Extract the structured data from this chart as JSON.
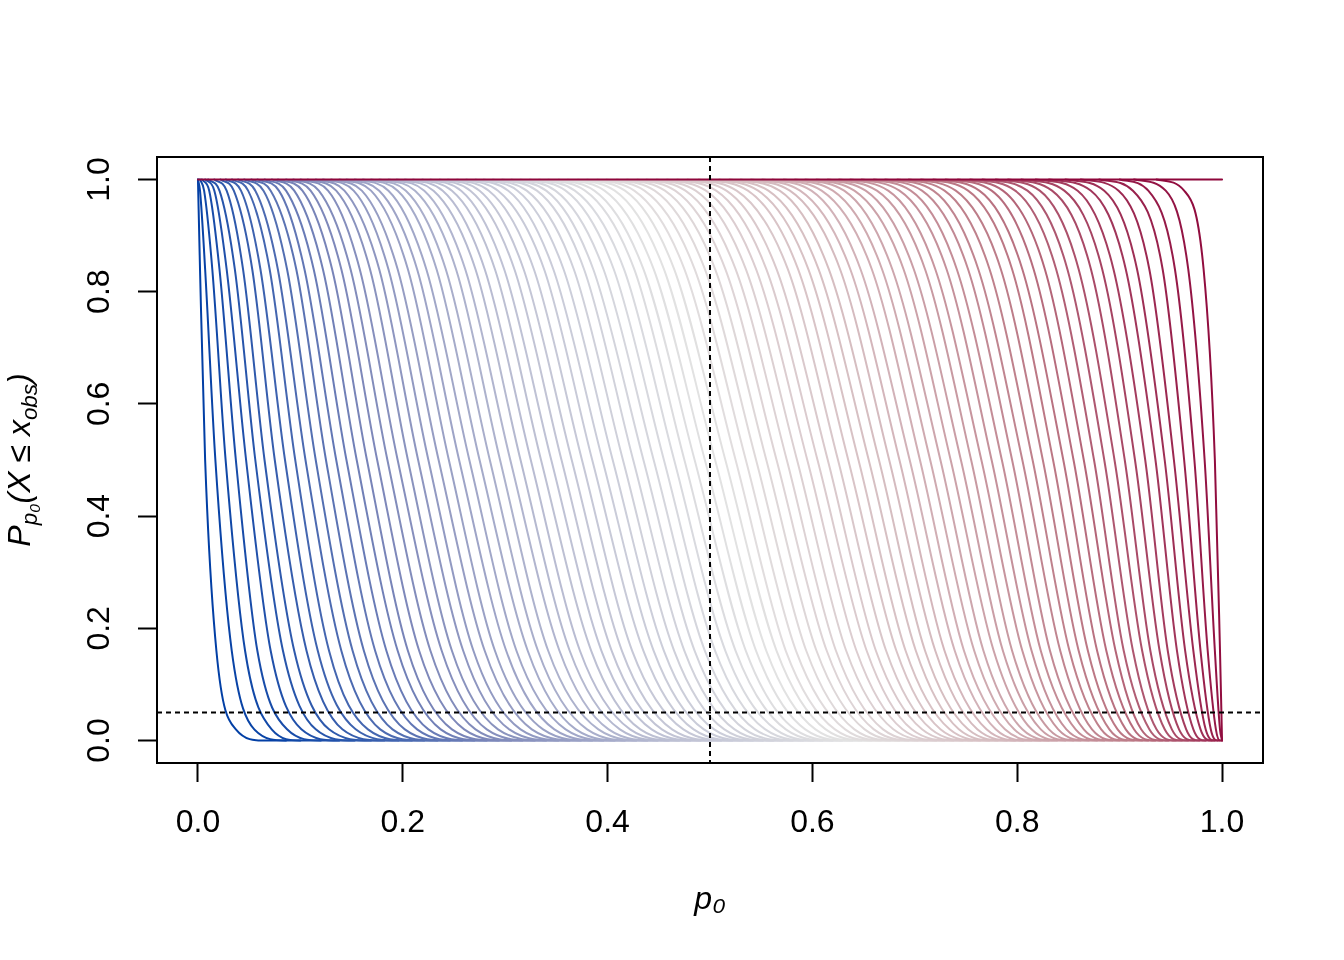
{
  "chart_data": {
    "type": "line",
    "xlabel": "p₀",
    "ylabel": "P$_{p₀}$(X ≤ x$_{obs}$)",
    "xlim": [
      -0.04,
      1.04
    ],
    "ylim": [
      -0.04,
      1.04
    ],
    "xticks": [
      {
        "value": 0,
        "label": "0.0"
      },
      0.2,
      0.4,
      0.6,
      0.8,
      {
        "value": 1,
        "label": "1.0"
      }
    ],
    "yticks": [
      {
        "value": 0,
        "label": "0.0"
      },
      0.2,
      0.4,
      0.6,
      0.8,
      {
        "value": 1,
        "label": "1.0"
      }
    ],
    "ref_lines": [
      {
        "axis": "x",
        "value": 0.5,
        "color": "#000000",
        "line_style": "dotted"
      },
      {
        "axis": "y",
        "value": 0.05,
        "color": "#000000",
        "line_style": "dotted"
      }
    ],
    "series": [
      {
        "color": "#023fa5",
        "x": [
          0,
          0.002,
          0.007,
          0.018,
          0.037,
          0.064,
          0.086
        ],
        "values": [
          1,
          0.84,
          0.5,
          0.16,
          0.02,
          0,
          0
        ]
      },
      {
        "color": "#0943a6",
        "x": [
          0,
          0.002,
          0.007,
          0.017,
          0.033,
          0.055,
          0.086,
          0.1
        ],
        "values": [
          1,
          0.98,
          0.84,
          0.5,
          0.16,
          0.02,
          0,
          0
        ]
      },
      {
        "color": "#1148a7",
        "x": [
          0.002,
          0.006,
          0.014,
          0.027,
          0.046,
          0.072,
          0.1,
          0.12
        ],
        "values": [
          1,
          0.98,
          0.84,
          0.5,
          0.16,
          0.02,
          0,
          0
        ]
      },
      {
        "color": "#184ca9",
        "x": [
          0.004,
          0.011,
          0.021,
          0.037,
          0.058,
          0.087,
          0.12,
          0.138
        ],
        "values": [
          1,
          0.98,
          0.84,
          0.5,
          0.16,
          0.02,
          0,
          0
        ]
      },
      {
        "color": "#2050aa",
        "x": [
          0.007,
          0.016,
          0.028,
          0.047,
          0.071,
          0.101,
          0.138,
          0.153
        ],
        "values": [
          1,
          0.98,
          0.84,
          0.5,
          0.16,
          0.02,
          0,
          0
        ]
      },
      {
        "color": "#2755ab",
        "x": [
          0.01,
          0.021,
          0.036,
          0.056,
          0.083,
          0.115,
          0.153,
          0.169
        ],
        "values": [
          1,
          0.98,
          0.84,
          0.5,
          0.16,
          0.02,
          0,
          0
        ]
      },
      {
        "color": "#2e59ac",
        "x": [
          0.016,
          0.028,
          0.044,
          0.065,
          0.094,
          0.128,
          0.169,
          0.182
        ],
        "values": [
          1,
          0.98,
          0.84,
          0.5,
          0.16,
          0.02,
          0,
          0
        ]
      },
      {
        "color": "#365dad",
        "x": [
          0.022,
          0.035,
          0.053,
          0.075,
          0.106,
          0.141,
          0.182,
          0.196
        ],
        "values": [
          1,
          0.98,
          0.84,
          0.5,
          0.16,
          0.02,
          0,
          0
        ]
      },
      {
        "color": "#3d62af",
        "x": [
          0.027,
          0.042,
          0.061,
          0.085,
          0.117,
          0.154,
          0.196,
          0.209
        ],
        "values": [
          1,
          0.98,
          0.84,
          0.5,
          0.16,
          0.02,
          0,
          0
        ]
      },
      {
        "color": "#4466b0",
        "x": [
          0.033,
          0.049,
          0.07,
          0.095,
          0.128,
          0.166,
          0.209,
          0.221
        ],
        "values": [
          1,
          0.98,
          0.84,
          0.5,
          0.16,
          0.02,
          0,
          0
        ]
      },
      {
        "color": "#4c6ab1",
        "x": [
          0.039,
          0.056,
          0.078,
          0.105,
          0.14,
          0.178,
          0.221,
          0.234
        ],
        "values": [
          1,
          0.98,
          0.84,
          0.5,
          0.16,
          0.02,
          0,
          0
        ]
      },
      {
        "color": "#536fb2",
        "x": [
          0.045,
          0.064,
          0.087,
          0.115,
          0.151,
          0.19,
          0.234,
          0.246
        ],
        "values": [
          1,
          0.98,
          0.84,
          0.5,
          0.16,
          0.02,
          0,
          0
        ]
      },
      {
        "color": "#5b73b3",
        "x": [
          0.052,
          0.071,
          0.096,
          0.125,
          0.162,
          0.202,
          0.246,
          0.258
        ],
        "values": [
          1,
          0.98,
          0.84,
          0.5,
          0.16,
          0.02,
          0,
          0
        ]
      },
      {
        "color": "#6277b5",
        "x": [
          0.058,
          0.079,
          0.104,
          0.135,
          0.173,
          0.214,
          0.258,
          0.27
        ],
        "values": [
          1,
          0.98,
          0.84,
          0.5,
          0.16,
          0.02,
          0,
          0
        ]
      },
      {
        "color": "#697bb6",
        "x": [
          0.065,
          0.086,
          0.113,
          0.145,
          0.184,
          0.225,
          0.27,
          0.282
        ],
        "values": [
          1,
          0.98,
          0.84,
          0.5,
          0.16,
          0.02,
          0,
          0
        ]
      },
      {
        "color": "#7180b7",
        "x": [
          0.072,
          0.094,
          0.122,
          0.155,
          0.195,
          0.237,
          0.282,
          0.294
        ],
        "values": [
          1,
          0.98,
          0.84,
          0.5,
          0.16,
          0.02,
          0,
          0
        ]
      },
      {
        "color": "#7884b8",
        "x": [
          0.078,
          0.102,
          0.131,
          0.165,
          0.205,
          0.248,
          0.294,
          0.306
        ],
        "values": [
          1,
          0.98,
          0.84,
          0.5,
          0.16,
          0.02,
          0,
          0
        ]
      },
      {
        "color": "#7e88ba",
        "x": [
          0.086,
          0.11,
          0.14,
          0.175,
          0.216,
          0.26,
          0.306,
          0.317
        ],
        "values": [
          1,
          0.98,
          0.84,
          0.5,
          0.16,
          0.02,
          0,
          0
        ]
      },
      {
        "color": "#828cbb",
        "x": [
          0.093,
          0.118,
          0.149,
          0.185,
          0.227,
          0.271,
          0.317,
          0.329
        ],
        "values": [
          1,
          0.98,
          0.84,
          0.5,
          0.16,
          0.02,
          0,
          0
        ]
      },
      {
        "color": "#868fbd",
        "x": [
          0.1,
          0.127,
          0.158,
          0.195,
          0.238,
          0.282,
          0.329,
          0.34
        ],
        "values": [
          1,
          0.98,
          0.84,
          0.5,
          0.16,
          0.02,
          0,
          0
        ]
      },
      {
        "color": "#8a93be",
        "x": [
          0.107,
          0.135,
          0.168,
          0.205,
          0.248,
          0.293,
          0.34,
          0.352
        ],
        "values": [
          1,
          0.98,
          0.84,
          0.5,
          0.16,
          0.02,
          0,
          0
        ]
      },
      {
        "color": "#8e96c0",
        "x": [
          0.115,
          0.143,
          0.177,
          0.215,
          0.259,
          0.304,
          0.352,
          0.363
        ],
        "values": [
          1,
          0.98,
          0.84,
          0.5,
          0.16,
          0.02,
          0,
          0
        ]
      },
      {
        "color": "#929ac2",
        "x": [
          0.122,
          0.152,
          0.186,
          0.225,
          0.269,
          0.315,
          0.363,
          0.374
        ],
        "values": [
          1,
          0.98,
          0.84,
          0.5,
          0.16,
          0.02,
          0,
          0
        ]
      },
      {
        "color": "#969dc3",
        "x": [
          0.13,
          0.16,
          0.195,
          0.235,
          0.28,
          0.326,
          0.374,
          0.385
        ],
        "values": [
          1,
          0.98,
          0.84,
          0.5,
          0.16,
          0.02,
          0,
          0
        ]
      },
      {
        "color": "#9aa1c5",
        "x": [
          0.138,
          0.169,
          0.205,
          0.245,
          0.29,
          0.337,
          0.385,
          0.396
        ],
        "values": [
          1,
          0.98,
          0.84,
          0.5,
          0.16,
          0.02,
          0,
          0
        ]
      },
      {
        "color": "#9ea4c7",
        "x": [
          0.145,
          0.177,
          0.214,
          0.255,
          0.301,
          0.348,
          0.396,
          0.407
        ],
        "values": [
          1,
          0.98,
          0.84,
          0.5,
          0.16,
          0.02,
          0,
          0
        ]
      },
      {
        "color": "#a1a7c8",
        "x": [
          0.153,
          0.186,
          0.223,
          0.265,
          0.311,
          0.359,
          0.407,
          0.417
        ],
        "values": [
          1,
          0.98,
          0.84,
          0.5,
          0.16,
          0.02,
          0,
          0
        ]
      },
      {
        "color": "#a5abca",
        "x": [
          0.161,
          0.195,
          0.233,
          0.275,
          0.322,
          0.369,
          0.417,
          0.428
        ],
        "values": [
          1,
          0.98,
          0.84,
          0.5,
          0.16,
          0.02,
          0,
          0
        ]
      },
      {
        "color": "#a9aecb",
        "x": [
          0.169,
          0.203,
          0.242,
          0.285,
          0.332,
          0.38,
          0.428,
          0.439
        ],
        "values": [
          1,
          0.98,
          0.84,
          0.5,
          0.16,
          0.02,
          0,
          0
        ]
      },
      {
        "color": "#adb2cd",
        "x": [
          0.177,
          0.212,
          0.252,
          0.295,
          0.342,
          0.391,
          0.439,
          0.449
        ],
        "values": [
          1,
          0.98,
          0.84,
          0.5,
          0.16,
          0.02,
          0,
          0
        ]
      },
      {
        "color": "#b1b5cf",
        "x": [
          0.186,
          0.221,
          0.261,
          0.305,
          0.353,
          0.401,
          0.449,
          0.46
        ],
        "values": [
          1,
          0.98,
          0.84,
          0.5,
          0.16,
          0.02,
          0,
          0
        ]
      },
      {
        "color": "#b5b9d0",
        "x": [
          0.194,
          0.23,
          0.271,
          0.315,
          0.363,
          0.412,
          0.46,
          0.47
        ],
        "values": [
          1,
          0.98,
          0.84,
          0.5,
          0.16,
          0.02,
          0,
          0
        ]
      },
      {
        "color": "#b9bcd2",
        "x": [
          0.202,
          0.239,
          0.28,
          0.325,
          0.373,
          0.422,
          0.47,
          0.481
        ],
        "values": [
          1,
          0.98,
          0.84,
          0.5,
          0.16,
          0.02,
          0,
          0
        ]
      },
      {
        "color": "#bdc0d3",
        "x": [
          0.21,
          0.248,
          0.29,
          0.335,
          0.384,
          0.432,
          0.481,
          0.491
        ],
        "values": [
          1,
          0.98,
          0.84,
          0.5,
          0.16,
          0.02,
          0,
          0
        ]
      },
      {
        "color": "#bfc2d5",
        "x": [
          0.219,
          0.257,
          0.299,
          0.345,
          0.394,
          0.443,
          0.491,
          0.501
        ],
        "values": [
          1,
          0.98,
          0.84,
          0.5,
          0.16,
          0.02,
          0,
          0
        ]
      },
      {
        "color": "#c2c4d5",
        "x": [
          0.227,
          0.266,
          0.309,
          0.355,
          0.404,
          0.453,
          0.501,
          0.511
        ],
        "values": [
          1,
          0.98,
          0.84,
          0.5,
          0.16,
          0.02,
          0,
          0
        ]
      },
      {
        "color": "#c4c6d6",
        "x": [
          0.236,
          0.275,
          0.318,
          0.365,
          0.414,
          0.463,
          0.511,
          0.522
        ],
        "values": [
          1,
          0.98,
          0.84,
          0.5,
          0.16,
          0.02,
          0,
          0
        ]
      },
      {
        "color": "#c6c8d7",
        "x": [
          0.244,
          0.284,
          0.328,
          0.375,
          0.424,
          0.474,
          0.522,
          0.532
        ],
        "values": [
          1,
          0.98,
          0.84,
          0.5,
          0.16,
          0.02,
          0,
          0
        ]
      },
      {
        "color": "#c8cad8",
        "x": [
          0.253,
          0.293,
          0.338,
          0.385,
          0.435,
          0.484,
          0.532,
          0.542
        ],
        "values": [
          1,
          0.98,
          0.84,
          0.5,
          0.16,
          0.02,
          0,
          0
        ]
      },
      {
        "color": "#caccd9",
        "x": [
          0.262,
          0.303,
          0.347,
          0.395,
          0.445,
          0.494,
          0.542,
          0.552
        ],
        "values": [
          1,
          0.98,
          0.84,
          0.5,
          0.16,
          0.02,
          0,
          0
        ]
      },
      {
        "color": "#ccceda",
        "x": [
          0.271,
          0.312,
          0.357,
          0.405,
          0.455,
          0.504,
          0.552,
          0.562
        ],
        "values": [
          1,
          0.98,
          0.84,
          0.5,
          0.16,
          0.02,
          0,
          0
        ]
      },
      {
        "color": "#cfd0da",
        "x": [
          0.279,
          0.321,
          0.367,
          0.415,
          0.465,
          0.514,
          0.562,
          0.571
        ],
        "values": [
          1,
          0.98,
          0.84,
          0.5,
          0.16,
          0.02,
          0,
          0
        ]
      },
      {
        "color": "#d1d2db",
        "x": [
          0.288,
          0.331,
          0.377,
          0.425,
          0.475,
          0.524,
          0.571,
          0.581
        ],
        "values": [
          1,
          0.98,
          0.84,
          0.5,
          0.16,
          0.02,
          0,
          0
        ]
      },
      {
        "color": "#d3d4dc",
        "x": [
          0.297,
          0.34,
          0.386,
          0.435,
          0.485,
          0.534,
          0.581,
          0.591
        ],
        "values": [
          1,
          0.98,
          0.84,
          0.5,
          0.16,
          0.02,
          0,
          0
        ]
      },
      {
        "color": "#d5d6dd",
        "x": [
          0.306,
          0.349,
          0.396,
          0.445,
          0.495,
          0.544,
          0.591,
          0.601
        ],
        "values": [
          1,
          0.98,
          0.84,
          0.5,
          0.16,
          0.02,
          0,
          0
        ]
      },
      {
        "color": "#d7d8de",
        "x": [
          0.315,
          0.359,
          0.406,
          0.455,
          0.505,
          0.554,
          0.601,
          0.61
        ],
        "values": [
          1,
          0.98,
          0.84,
          0.5,
          0.16,
          0.02,
          0,
          0
        ]
      },
      {
        "color": "#d9dadf",
        "x": [
          0.324,
          0.368,
          0.416,
          0.465,
          0.515,
          0.564,
          0.61,
          0.62
        ],
        "values": [
          1,
          0.98,
          0.84,
          0.5,
          0.16,
          0.02,
          0,
          0
        ]
      },
      {
        "color": "#dcdcdf",
        "x": [
          0.333,
          0.378,
          0.426,
          0.475,
          0.525,
          0.574,
          0.62,
          0.629
        ],
        "values": [
          1,
          0.98,
          0.84,
          0.5,
          0.16,
          0.02,
          0,
          0
        ]
      },
      {
        "color": "#dedee0",
        "x": [
          0.342,
          0.387,
          0.435,
          0.485,
          0.535,
          0.583,
          0.629,
          0.639
        ],
        "values": [
          1,
          0.98,
          0.84,
          0.5,
          0.16,
          0.02,
          0,
          0
        ]
      },
      {
        "color": "#e0e0e1",
        "x": [
          0.352,
          0.397,
          0.445,
          0.495,
          0.545,
          0.593,
          0.639,
          0.648
        ],
        "values": [
          1,
          0.98,
          0.84,
          0.5,
          0.16,
          0.02,
          0,
          0
        ]
      },
      {
        "color": "#e2e2e2",
        "x": [
          0.361,
          0.407,
          0.455,
          0.505,
          0.555,
          0.603,
          0.648,
          0.658
        ],
        "values": [
          1,
          0.98,
          0.84,
          0.5,
          0.16,
          0.02,
          0,
          0
        ]
      },
      {
        "color": "#e1e0e0",
        "x": [
          0.371,
          0.417,
          0.465,
          0.515,
          0.565,
          0.613,
          0.658,
          0.667
        ],
        "values": [
          1,
          0.98,
          0.84,
          0.5,
          0.16,
          0.02,
          0,
          0
        ]
      },
      {
        "color": "#e1ddde",
        "x": [
          0.38,
          0.426,
          0.475,
          0.525,
          0.574,
          0.622,
          0.667,
          0.676
        ],
        "values": [
          1,
          0.98,
          0.84,
          0.5,
          0.16,
          0.02,
          0,
          0
        ]
      },
      {
        "color": "#e0dbdc",
        "x": [
          0.39,
          0.436,
          0.485,
          0.535,
          0.584,
          0.632,
          0.676,
          0.685
        ],
        "values": [
          1,
          0.98,
          0.84,
          0.5,
          0.16,
          0.02,
          0,
          0
        ]
      },
      {
        "color": "#dfd9da",
        "x": [
          0.399,
          0.446,
          0.495,
          0.545,
          0.594,
          0.641,
          0.685,
          0.694
        ],
        "values": [
          1,
          0.98,
          0.84,
          0.5,
          0.16,
          0.02,
          0,
          0
        ]
      },
      {
        "color": "#ded7d8",
        "x": [
          0.409,
          0.456,
          0.505,
          0.555,
          0.604,
          0.651,
          0.694,
          0.703
        ],
        "values": [
          1,
          0.98,
          0.84,
          0.5,
          0.16,
          0.02,
          0,
          0
        ]
      },
      {
        "color": "#ded4d6",
        "x": [
          0.419,
          0.466,
          0.515,
          0.565,
          0.614,
          0.66,
          0.703,
          0.712
        ],
        "values": [
          1,
          0.98,
          0.84,
          0.5,
          0.16,
          0.02,
          0,
          0
        ]
      },
      {
        "color": "#ddd2d4",
        "x": [
          0.429,
          0.476,
          0.525,
          0.575,
          0.623,
          0.669,
          0.712,
          0.721
        ],
        "values": [
          1,
          0.98,
          0.84,
          0.5,
          0.16,
          0.02,
          0,
          0
        ]
      },
      {
        "color": "#dcd0d2",
        "x": [
          0.438,
          0.486,
          0.535,
          0.585,
          0.633,
          0.679,
          0.721,
          0.729
        ],
        "values": [
          1,
          0.98,
          0.84,
          0.5,
          0.16,
          0.02,
          0,
          0
        ]
      },
      {
        "color": "#dccdd0",
        "x": [
          0.448,
          0.496,
          0.545,
          0.595,
          0.643,
          0.688,
          0.729,
          0.738
        ],
        "values": [
          1,
          0.98,
          0.84,
          0.5,
          0.16,
          0.02,
          0,
          0
        ]
      },
      {
        "color": "#dbcbce",
        "x": [
          0.458,
          0.506,
          0.555,
          0.605,
          0.653,
          0.697,
          0.738,
          0.747
        ],
        "values": [
          1,
          0.98,
          0.84,
          0.5,
          0.16,
          0.02,
          0,
          0
        ]
      },
      {
        "color": "#dac9cc",
        "x": [
          0.468,
          0.516,
          0.565,
          0.615,
          0.662,
          0.707,
          0.747,
          0.756
        ],
        "values": [
          1,
          0.98,
          0.84,
          0.5,
          0.16,
          0.02,
          0,
          0
        ]
      },
      {
        "color": "#d9c7ca",
        "x": [
          0.478,
          0.526,
          0.576,
          0.625,
          0.672,
          0.716,
          0.756,
          0.764
        ],
        "values": [
          1,
          0.98,
          0.84,
          0.5,
          0.16,
          0.02,
          0,
          0
        ]
      },
      {
        "color": "#d9c4c7",
        "x": [
          0.489,
          0.537,
          0.586,
          0.635,
          0.682,
          0.725,
          0.764,
          0.773
        ],
        "values": [
          1,
          0.98,
          0.84,
          0.5,
          0.16,
          0.02,
          0,
          0
        ]
      },
      {
        "color": "#d8c2c5",
        "x": [
          0.499,
          0.547,
          0.596,
          0.645,
          0.691,
          0.734,
          0.773,
          0.781
        ],
        "values": [
          1,
          0.98,
          0.84,
          0.5,
          0.16,
          0.02,
          0,
          0
        ]
      },
      {
        "color": "#d7c0c3",
        "x": [
          0.509,
          0.557,
          0.606,
          0.655,
          0.701,
          0.743,
          0.781,
          0.79
        ],
        "values": [
          1,
          0.98,
          0.84,
          0.5,
          0.16,
          0.02,
          0,
          0
        ]
      },
      {
        "color": "#d6bec1",
        "x": [
          0.519,
          0.568,
          0.616,
          0.665,
          0.71,
          0.752,
          0.79,
          0.798
        ],
        "values": [
          1,
          0.98,
          0.84,
          0.5,
          0.16,
          0.02,
          0,
          0
        ]
      },
      {
        "color": "#d5bbbf",
        "x": [
          0.53,
          0.578,
          0.627,
          0.675,
          0.72,
          0.761,
          0.798,
          0.806
        ],
        "values": [
          1,
          0.98,
          0.84,
          0.5,
          0.16,
          0.02,
          0,
          0
        ]
      },
      {
        "color": "#d4b6bb",
        "x": [
          0.54,
          0.588,
          0.637,
          0.685,
          0.729,
          0.77,
          0.806,
          0.814
        ],
        "values": [
          1,
          0.98,
          0.84,
          0.5,
          0.16,
          0.02,
          0,
          0
        ]
      },
      {
        "color": "#d2b2b8",
        "x": [
          0.551,
          0.599,
          0.647,
          0.695,
          0.739,
          0.779,
          0.814,
          0.823
        ],
        "values": [
          1,
          0.98,
          0.84,
          0.5,
          0.16,
          0.02,
          0,
          0
        ]
      },
      {
        "color": "#d1aeb4",
        "x": [
          0.561,
          0.609,
          0.658,
          0.705,
          0.748,
          0.788,
          0.823,
          0.831
        ],
        "values": [
          1,
          0.98,
          0.84,
          0.5,
          0.16,
          0.02,
          0,
          0
        ]
      },
      {
        "color": "#cfaab0",
        "x": [
          0.572,
          0.62,
          0.668,
          0.715,
          0.758,
          0.797,
          0.831,
          0.839
        ],
        "values": [
          1,
          0.98,
          0.84,
          0.5,
          0.16,
          0.02,
          0,
          0
        ]
      },
      {
        "color": "#cda6ad",
        "x": [
          0.583,
          0.631,
          0.678,
          0.725,
          0.767,
          0.805,
          0.839,
          0.847
        ],
        "values": [
          1,
          0.98,
          0.84,
          0.5,
          0.16,
          0.02,
          0,
          0
        ]
      },
      {
        "color": "#cca2a9",
        "x": [
          0.593,
          0.641,
          0.689,
          0.735,
          0.777,
          0.814,
          0.847,
          0.855
        ],
        "values": [
          1,
          0.98,
          0.84,
          0.5,
          0.16,
          0.02,
          0,
          0
        ]
      },
      {
        "color": "#ca9ea6",
        "x": [
          0.604,
          0.652,
          0.699,
          0.745,
          0.786,
          0.823,
          0.855,
          0.862
        ],
        "values": [
          1,
          0.98,
          0.84,
          0.5,
          0.16,
          0.02,
          0,
          0
        ]
      },
      {
        "color": "#c89aa2",
        "x": [
          0.615,
          0.663,
          0.71,
          0.755,
          0.795,
          0.831,
          0.862,
          0.87
        ],
        "values": [
          1,
          0.98,
          0.84,
          0.5,
          0.16,
          0.02,
          0,
          0
        ]
      },
      {
        "color": "#c7959e",
        "x": [
          0.626,
          0.674,
          0.72,
          0.765,
          0.805,
          0.84,
          0.87,
          0.878
        ],
        "values": [
          1,
          0.98,
          0.84,
          0.5,
          0.16,
          0.02,
          0,
          0
        ]
      },
      {
        "color": "#c5919b",
        "x": [
          0.637,
          0.685,
          0.731,
          0.775,
          0.814,
          0.848,
          0.878,
          0.885
        ],
        "values": [
          1,
          0.98,
          0.84,
          0.5,
          0.16,
          0.02,
          0,
          0
        ]
      },
      {
        "color": "#c48d97",
        "x": [
          0.648,
          0.696,
          0.741,
          0.785,
          0.823,
          0.857,
          0.885,
          0.893
        ],
        "values": [
          1,
          0.98,
          0.84,
          0.5,
          0.16,
          0.02,
          0,
          0
        ]
      },
      {
        "color": "#c28994",
        "x": [
          0.66,
          0.707,
          0.752,
          0.795,
          0.832,
          0.865,
          0.893,
          0.9
        ],
        "values": [
          1,
          0.98,
          0.84,
          0.5,
          0.16,
          0.02,
          0,
          0
        ]
      },
      {
        "color": "#c08590",
        "x": [
          0.671,
          0.718,
          0.762,
          0.805,
          0.842,
          0.873,
          0.9,
          0.907
        ],
        "values": [
          1,
          0.98,
          0.84,
          0.5,
          0.16,
          0.02,
          0,
          0
        ]
      },
      {
        "color": "#bf818c",
        "x": [
          0.683,
          0.729,
          0.773,
          0.815,
          0.851,
          0.882,
          0.907,
          0.914
        ],
        "values": [
          1,
          0.98,
          0.84,
          0.5,
          0.16,
          0.02,
          0,
          0
        ]
      },
      {
        "color": "#bd7d89",
        "x": [
          0.694,
          0.74,
          0.784,
          0.825,
          0.86,
          0.89,
          0.914,
          0.922
        ],
        "values": [
          1,
          0.98,
          0.84,
          0.5,
          0.16,
          0.02,
          0,
          0
        ]
      },
      {
        "color": "#bc7885",
        "x": [
          0.706,
          0.752,
          0.795,
          0.835,
          0.869,
          0.898,
          0.922,
          0.928
        ],
        "values": [
          1,
          0.98,
          0.84,
          0.5,
          0.16,
          0.02,
          0,
          0
        ]
      },
      {
        "color": "#b97281",
        "x": [
          0.718,
          0.763,
          0.805,
          0.845,
          0.878,
          0.906,
          0.928,
          0.935
        ],
        "values": [
          1,
          0.98,
          0.84,
          0.5,
          0.16,
          0.02,
          0,
          0
        ]
      },
      {
        "color": "#b76c7d",
        "x": [
          0.73,
          0.775,
          0.816,
          0.855,
          0.887,
          0.914,
          0.935,
          0.942
        ],
        "values": [
          1,
          0.98,
          0.84,
          0.5,
          0.16,
          0.02,
          0,
          0
        ]
      },
      {
        "color": "#b46578",
        "x": [
          0.742,
          0.786,
          0.827,
          0.865,
          0.896,
          0.921,
          0.942,
          0.948
        ],
        "values": [
          1,
          0.98,
          0.84,
          0.5,
          0.16,
          0.02,
          0,
          0
        ]
      },
      {
        "color": "#b15e74",
        "x": [
          0.754,
          0.798,
          0.838,
          0.875,
          0.904,
          0.929,
          0.948,
          0.955
        ],
        "values": [
          1,
          0.98,
          0.84,
          0.5,
          0.16,
          0.02,
          0,
          0
        ]
      },
      {
        "color": "#ae5770",
        "x": [
          0.766,
          0.81,
          0.849,
          0.885,
          0.913,
          0.936,
          0.955,
          0.961
        ],
        "values": [
          1,
          0.98,
          0.84,
          0.5,
          0.16,
          0.02,
          0,
          0
        ]
      },
      {
        "color": "#ac516b",
        "x": [
          0.779,
          0.822,
          0.86,
          0.895,
          0.922,
          0.944,
          0.961,
          0.967
        ],
        "values": [
          1,
          0.98,
          0.84,
          0.5,
          0.16,
          0.02,
          0,
          0
        ]
      },
      {
        "color": "#a94a67",
        "x": [
          0.791,
          0.834,
          0.872,
          0.905,
          0.93,
          0.951,
          0.967,
          0.973
        ],
        "values": [
          1,
          0.98,
          0.84,
          0.5,
          0.16,
          0.02,
          0,
          0
        ]
      },
      {
        "color": "#a64362",
        "x": [
          0.804,
          0.846,
          0.883,
          0.915,
          0.939,
          0.958,
          0.973,
          0.978
        ],
        "values": [
          1,
          0.98,
          0.84,
          0.5,
          0.16,
          0.02,
          0,
          0
        ]
      },
      {
        "color": "#a43c5e",
        "x": [
          0.818,
          0.859,
          0.894,
          0.925,
          0.947,
          0.965,
          0.978,
          0.984
        ],
        "values": [
          1,
          0.98,
          0.84,
          0.5,
          0.16,
          0.02,
          0,
          0
        ]
      },
      {
        "color": "#a1355a",
        "x": [
          0.831,
          0.872,
          0.906,
          0.935,
          0.956,
          0.972,
          0.984,
          0.99
        ],
        "values": [
          1,
          0.98,
          0.84,
          0.5,
          0.16,
          0.02,
          0,
          0
        ]
      },
      {
        "color": "#9e2f55",
        "x": [
          0.847,
          0.885,
          0.917,
          0.944,
          0.964,
          0.979,
          0.99,
          0.993
        ],
        "values": [
          1,
          0.98,
          0.84,
          0.5,
          0.16,
          0.02,
          0,
          0
        ]
      },
      {
        "color": "#9c2851",
        "x": [
          0.862,
          0.899,
          0.929,
          0.953,
          0.972,
          0.984,
          0.993,
          0.996
        ],
        "values": [
          1,
          0.98,
          0.84,
          0.5,
          0.16,
          0.02,
          0,
          0
        ]
      },
      {
        "color": "#99214c",
        "x": [
          0.88,
          0.913,
          0.942,
          0.963,
          0.979,
          0.989,
          0.996,
          0.998
        ],
        "values": [
          1,
          0.98,
          0.84,
          0.5,
          0.16,
          0.02,
          0,
          0
        ]
      },
      {
        "color": "#961a48",
        "x": [
          0.9,
          0.928,
          0.954,
          0.973,
          0.986,
          0.994,
          0.998,
          1
        ],
        "values": [
          1,
          0.98,
          0.84,
          0.5,
          0.16,
          0.02,
          0,
          0
        ]
      },
      {
        "color": "#931444",
        "x": [
          0.914,
          0.945,
          0.967,
          0.983,
          0.993,
          0.998,
          1
        ],
        "values": [
          1,
          0.98,
          0.84,
          0.5,
          0.16,
          0.02,
          0
        ]
      },
      {
        "color": "#910d3f",
        "x": [
          0.936,
          0.963,
          0.982,
          0.993,
          0.998,
          1
        ],
        "values": [
          1,
          0.98,
          0.84,
          0.5,
          0.16,
          0
        ]
      },
      {
        "color": "#8e063b",
        "x": [
          0,
          1
        ],
        "values": [
          1,
          1
        ]
      }
    ]
  }
}
